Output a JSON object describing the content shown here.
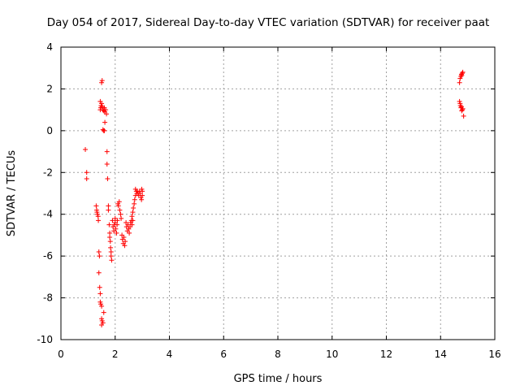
{
  "chart_data": {
    "type": "scatter",
    "title": "Day 054 of 2017, Sidereal Day-to-day VTEC variation (SDTVAR) for receiver paat",
    "xlabel": "GPS time / hours",
    "ylabel": "SDTVAR / TECUs",
    "xlim": [
      0,
      16
    ],
    "ylim": [
      -10,
      4
    ],
    "xticks": [
      0,
      2,
      4,
      6,
      8,
      10,
      12,
      14,
      16
    ],
    "yticks": [
      -10,
      -8,
      -6,
      -4,
      -2,
      0,
      2,
      4
    ],
    "grid": true,
    "marker": "plus",
    "color": "#ff0000",
    "series": [
      {
        "name": "SDTVAR",
        "points": [
          [
            0.9,
            -0.9
          ],
          [
            0.95,
            -2.0
          ],
          [
            0.95,
            -2.3
          ],
          [
            1.3,
            -3.6
          ],
          [
            1.32,
            -3.8
          ],
          [
            1.33,
            -3.9
          ],
          [
            1.35,
            -4.0
          ],
          [
            1.37,
            -4.1
          ],
          [
            1.38,
            -4.3
          ],
          [
            1.4,
            -5.8
          ],
          [
            1.42,
            -6.0
          ],
          [
            1.4,
            -6.8
          ],
          [
            1.43,
            -7.5
          ],
          [
            1.45,
            -7.8
          ],
          [
            1.45,
            -8.2
          ],
          [
            1.47,
            -8.3
          ],
          [
            1.5,
            -8.4
          ],
          [
            1.5,
            -9.0
          ],
          [
            1.52,
            -9.1
          ],
          [
            1.55,
            -9.2
          ],
          [
            1.5,
            -9.3
          ],
          [
            1.58,
            -8.7
          ],
          [
            1.45,
            1.0
          ],
          [
            1.47,
            1.1
          ],
          [
            1.48,
            1.2
          ],
          [
            1.5,
            1.3
          ],
          [
            1.45,
            1.4
          ],
          [
            1.52,
            1.15
          ],
          [
            1.55,
            1.0
          ],
          [
            1.58,
            0.95
          ],
          [
            1.6,
            1.1
          ],
          [
            1.62,
            0.9
          ],
          [
            1.65,
            1.0
          ],
          [
            1.68,
            0.8
          ],
          [
            1.5,
            2.3
          ],
          [
            1.52,
            2.4
          ],
          [
            1.55,
            0.05
          ],
          [
            1.58,
            0.0
          ],
          [
            1.6,
            0.0
          ],
          [
            1.62,
            0.4
          ],
          [
            1.7,
            -1.0
          ],
          [
            1.7,
            -1.6
          ],
          [
            1.72,
            -2.3
          ],
          [
            1.75,
            -3.6
          ],
          [
            1.75,
            -3.8
          ],
          [
            1.78,
            -4.5
          ],
          [
            1.8,
            -4.9
          ],
          [
            1.8,
            -5.1
          ],
          [
            1.82,
            -5.3
          ],
          [
            1.83,
            -5.6
          ],
          [
            1.85,
            -5.8
          ],
          [
            1.85,
            -6.0
          ],
          [
            1.87,
            -6.2
          ],
          [
            1.9,
            -4.3
          ],
          [
            1.92,
            -4.6
          ],
          [
            1.95,
            -4.8
          ],
          [
            1.97,
            -4.5
          ],
          [
            2.0,
            -4.2
          ],
          [
            2.0,
            -4.4
          ],
          [
            2.02,
            -4.7
          ],
          [
            2.05,
            -4.9
          ],
          [
            2.07,
            -4.5
          ],
          [
            2.08,
            -4.3
          ],
          [
            2.1,
            -3.5
          ],
          [
            2.12,
            -3.6
          ],
          [
            2.15,
            -3.4
          ],
          [
            2.17,
            -3.8
          ],
          [
            2.2,
            -4.0
          ],
          [
            2.22,
            -4.2
          ],
          [
            2.25,
            -5.0
          ],
          [
            2.27,
            -5.2
          ],
          [
            2.3,
            -5.4
          ],
          [
            2.32,
            -5.1
          ],
          [
            2.35,
            -5.5
          ],
          [
            2.37,
            -5.3
          ],
          [
            2.4,
            -4.4
          ],
          [
            2.42,
            -4.6
          ],
          [
            2.45,
            -4.8
          ],
          [
            2.47,
            -4.5
          ],
          [
            2.5,
            -4.7
          ],
          [
            2.52,
            -4.9
          ],
          [
            2.55,
            -4.6
          ],
          [
            2.57,
            -4.4
          ],
          [
            2.6,
            -4.3
          ],
          [
            2.62,
            -4.5
          ],
          [
            2.65,
            -4.3
          ],
          [
            2.62,
            -4.1
          ],
          [
            2.65,
            -3.9
          ],
          [
            2.67,
            -3.7
          ],
          [
            2.7,
            -3.5
          ],
          [
            2.72,
            -3.3
          ],
          [
            2.75,
            -3.1
          ],
          [
            2.75,
            -2.8
          ],
          [
            2.78,
            -2.9
          ],
          [
            2.8,
            -3.0
          ],
          [
            2.82,
            -2.9
          ],
          [
            2.85,
            -3.0
          ],
          [
            2.87,
            -3.1
          ],
          [
            2.9,
            -2.9
          ],
          [
            2.92,
            -3.0
          ],
          [
            2.95,
            -3.2
          ],
          [
            2.97,
            -3.3
          ],
          [
            3.0,
            -2.9
          ],
          [
            3.0,
            -3.1
          ],
          [
            2.98,
            -2.8
          ],
          [
            14.7,
            2.3
          ],
          [
            14.72,
            2.5
          ],
          [
            14.75,
            2.6
          ],
          [
            14.77,
            2.7
          ],
          [
            14.8,
            2.75
          ],
          [
            14.82,
            2.8
          ],
          [
            14.78,
            2.65
          ],
          [
            14.7,
            1.4
          ],
          [
            14.72,
            1.3
          ],
          [
            14.73,
            1.2
          ],
          [
            14.75,
            1.1
          ],
          [
            14.77,
            1.15
          ],
          [
            14.8,
            1.0
          ],
          [
            14.82,
            1.05
          ],
          [
            14.78,
            0.95
          ],
          [
            14.85,
            0.7
          ]
        ]
      }
    ]
  }
}
